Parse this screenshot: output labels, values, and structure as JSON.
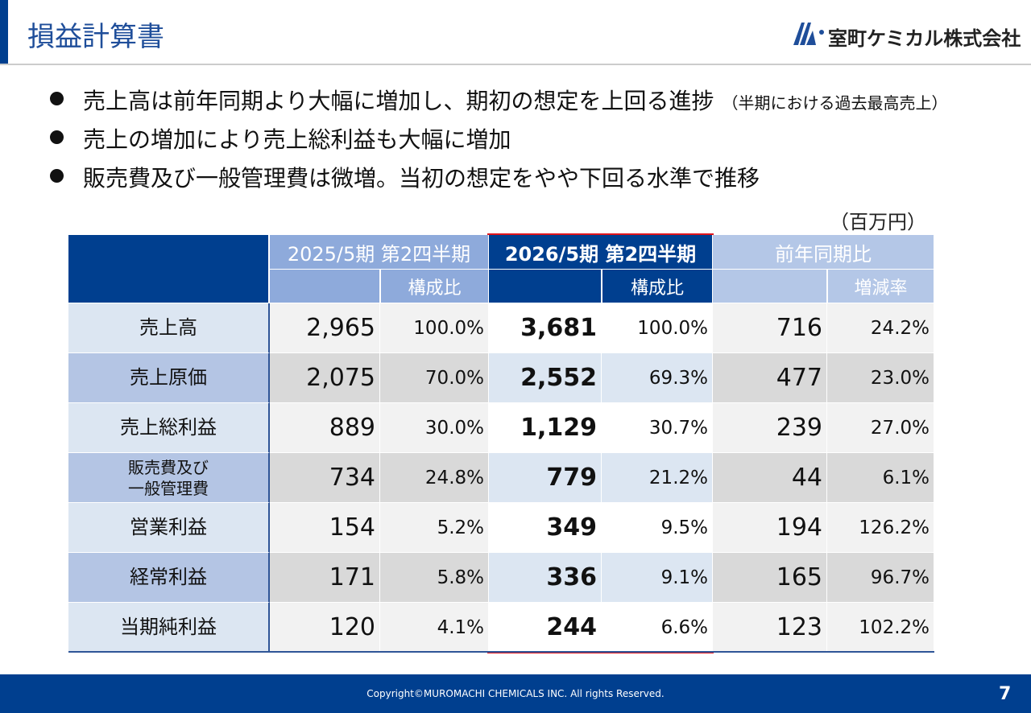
{
  "header": {
    "title": "損益計算書",
    "logo": "室町ケミカル株式会社"
  },
  "bullets": [
    {
      "text": "売上高は前年同期より大幅に増加し、期初の想定を上回る進捗",
      "note": "（半期における過去最高売上）"
    },
    {
      "text": "売上の増加により売上総利益も大幅に増加"
    },
    {
      "text": "販売費及び一般管理費は微増。当初の想定をやや下回る水準で推移"
    }
  ],
  "unit": "（百万円）",
  "table": {
    "groups": [
      "2025/5期 第2四半期",
      "2026/5期 第2四半期",
      "前年同期比"
    ],
    "subheaders": [
      "構成比",
      "構成比",
      "増減率"
    ],
    "rows": [
      {
        "label": [
          "売上高"
        ],
        "cells": [
          "2,965",
          "100.0%",
          "3,681",
          "100.0%",
          "716",
          "24.2%"
        ]
      },
      {
        "label": [
          "売上原価"
        ],
        "cells": [
          "2,075",
          "70.0%",
          "2,552",
          "69.3%",
          "477",
          "23.0%"
        ]
      },
      {
        "label": [
          "売上総利益"
        ],
        "cells": [
          "889",
          "30.0%",
          "1,129",
          "30.7%",
          "239",
          "27.0%"
        ]
      },
      {
        "label": [
          "販売費及び",
          "一般管理費"
        ],
        "cells": [
          "734",
          "24.8%",
          "779",
          "21.2%",
          "44",
          "6.1%"
        ]
      },
      {
        "label": [
          "営業利益"
        ],
        "cells": [
          "154",
          "5.2%",
          "349",
          "9.5%",
          "194",
          "126.2%"
        ]
      },
      {
        "label": [
          "経常利益"
        ],
        "cells": [
          "171",
          "5.8%",
          "336",
          "9.1%",
          "165",
          "96.7%"
        ]
      },
      {
        "label": [
          "当期純利益"
        ],
        "cells": [
          "120",
          "4.1%",
          "244",
          "6.6%",
          "123",
          "102.2%"
        ]
      }
    ]
  },
  "footer": {
    "copyright": "Copyright©MUROMACHI CHEMICALS INC. All rights Reserved.",
    "page": "7"
  }
}
